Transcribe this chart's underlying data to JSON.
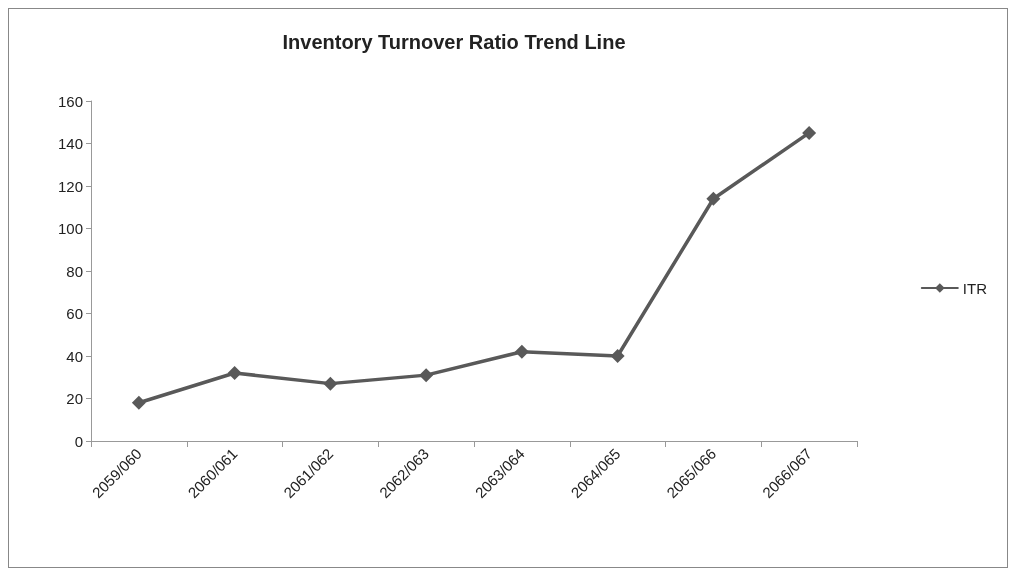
{
  "chart_data": {
    "type": "line",
    "title": "Inventory Turnover Ratio Trend Line",
    "categories": [
      "2059/060",
      "2060/061",
      "2061/062",
      "2062/063",
      "2063/064",
      "2064/065",
      "2065/066",
      "2066/067"
    ],
    "series": [
      {
        "name": "ITR",
        "color": "#595959",
        "values": [
          18,
          32,
          27,
          31,
          42,
          40,
          114,
          145
        ]
      }
    ],
    "ylim": [
      0,
      160
    ],
    "yticks": [
      0,
      20,
      40,
      60,
      80,
      100,
      120,
      140,
      160
    ],
    "grid": false,
    "legend": "right",
    "marker": "diamond",
    "line_style": "solid"
  }
}
